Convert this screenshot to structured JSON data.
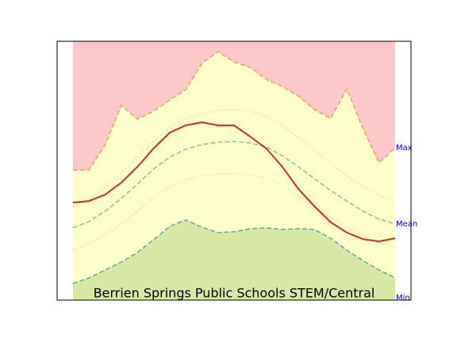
{
  "chart_data": {
    "type": "band",
    "title": "Berrien Springs Public Schools STEM/Central",
    "x": [
      0,
      1,
      2,
      3,
      4,
      5,
      6,
      7,
      8,
      9,
      10,
      11,
      12,
      13,
      14,
      15,
      16,
      17,
      18,
      19,
      20
    ],
    "xlim": [
      0,
      20
    ],
    "ylim": [
      0,
      100
    ],
    "series": [
      {
        "name": "Max",
        "color": "#f0a050",
        "fill": "#ffffcc",
        "above_fill": "#ffc8c8",
        "values": [
          50.3,
          50.3,
          60.1,
          75.2,
          69.9,
          73.0,
          77.3,
          81.3,
          91.4,
          96.0,
          92.0,
          89.9,
          85.3,
          82.5,
          78.8,
          73.6,
          70.2,
          81.6,
          66.3,
          53.1,
          58.9
        ]
      },
      {
        "name": "Min",
        "color": "#5fa8a0",
        "fill": "#d6e8a4",
        "values": [
          6.4,
          8.6,
          11.7,
          14.7,
          18.4,
          23.3,
          28.5,
          31.0,
          28.2,
          26.1,
          26.4,
          27.6,
          27.9,
          27.3,
          27.6,
          27.3,
          23.9,
          19.3,
          15.3,
          11.7,
          8.6
        ]
      },
      {
        "color": "#d8d890",
        "values": [
          36.2,
          39.0,
          43.6,
          49.1,
          55.2,
          61.6,
          66.5,
          70.0,
          72.1,
          73.3,
          73.6,
          73.0,
          71.2,
          67.5,
          62.8,
          57.9,
          52.7,
          48.1,
          43.9,
          40.5,
          38.3
        ]
      },
      {
        "color": "#d8d890",
        "values": [
          19.6,
          21.8,
          25.2,
          29.5,
          34.4,
          39.6,
          43.9,
          46.6,
          48.1,
          48.7,
          49.0,
          48.4,
          47.2,
          44.1,
          40.2,
          35.9,
          31.9,
          28.5,
          24.9,
          22.1,
          20.5
        ]
      },
      {
        "name": "Mean",
        "color": "#88c878",
        "values": [
          27.9,
          30.4,
          34.4,
          39.3,
          44.8,
          50.6,
          55.2,
          58.3,
          60.1,
          61.0,
          61.3,
          60.7,
          59.2,
          55.8,
          51.5,
          46.9,
          42.3,
          38.3,
          34.4,
          31.3,
          29.4
        ]
      },
      {
        "color": "#d62a20",
        "values": [
          37.7,
          38.3,
          40.8,
          45.4,
          51.5,
          58.6,
          64.7,
          67.5,
          68.7,
          67.5,
          67.5,
          63.2,
          58.6,
          51.5,
          42.9,
          36.2,
          30.1,
          26.1,
          23.6,
          22.7,
          23.9
        ]
      }
    ]
  }
}
